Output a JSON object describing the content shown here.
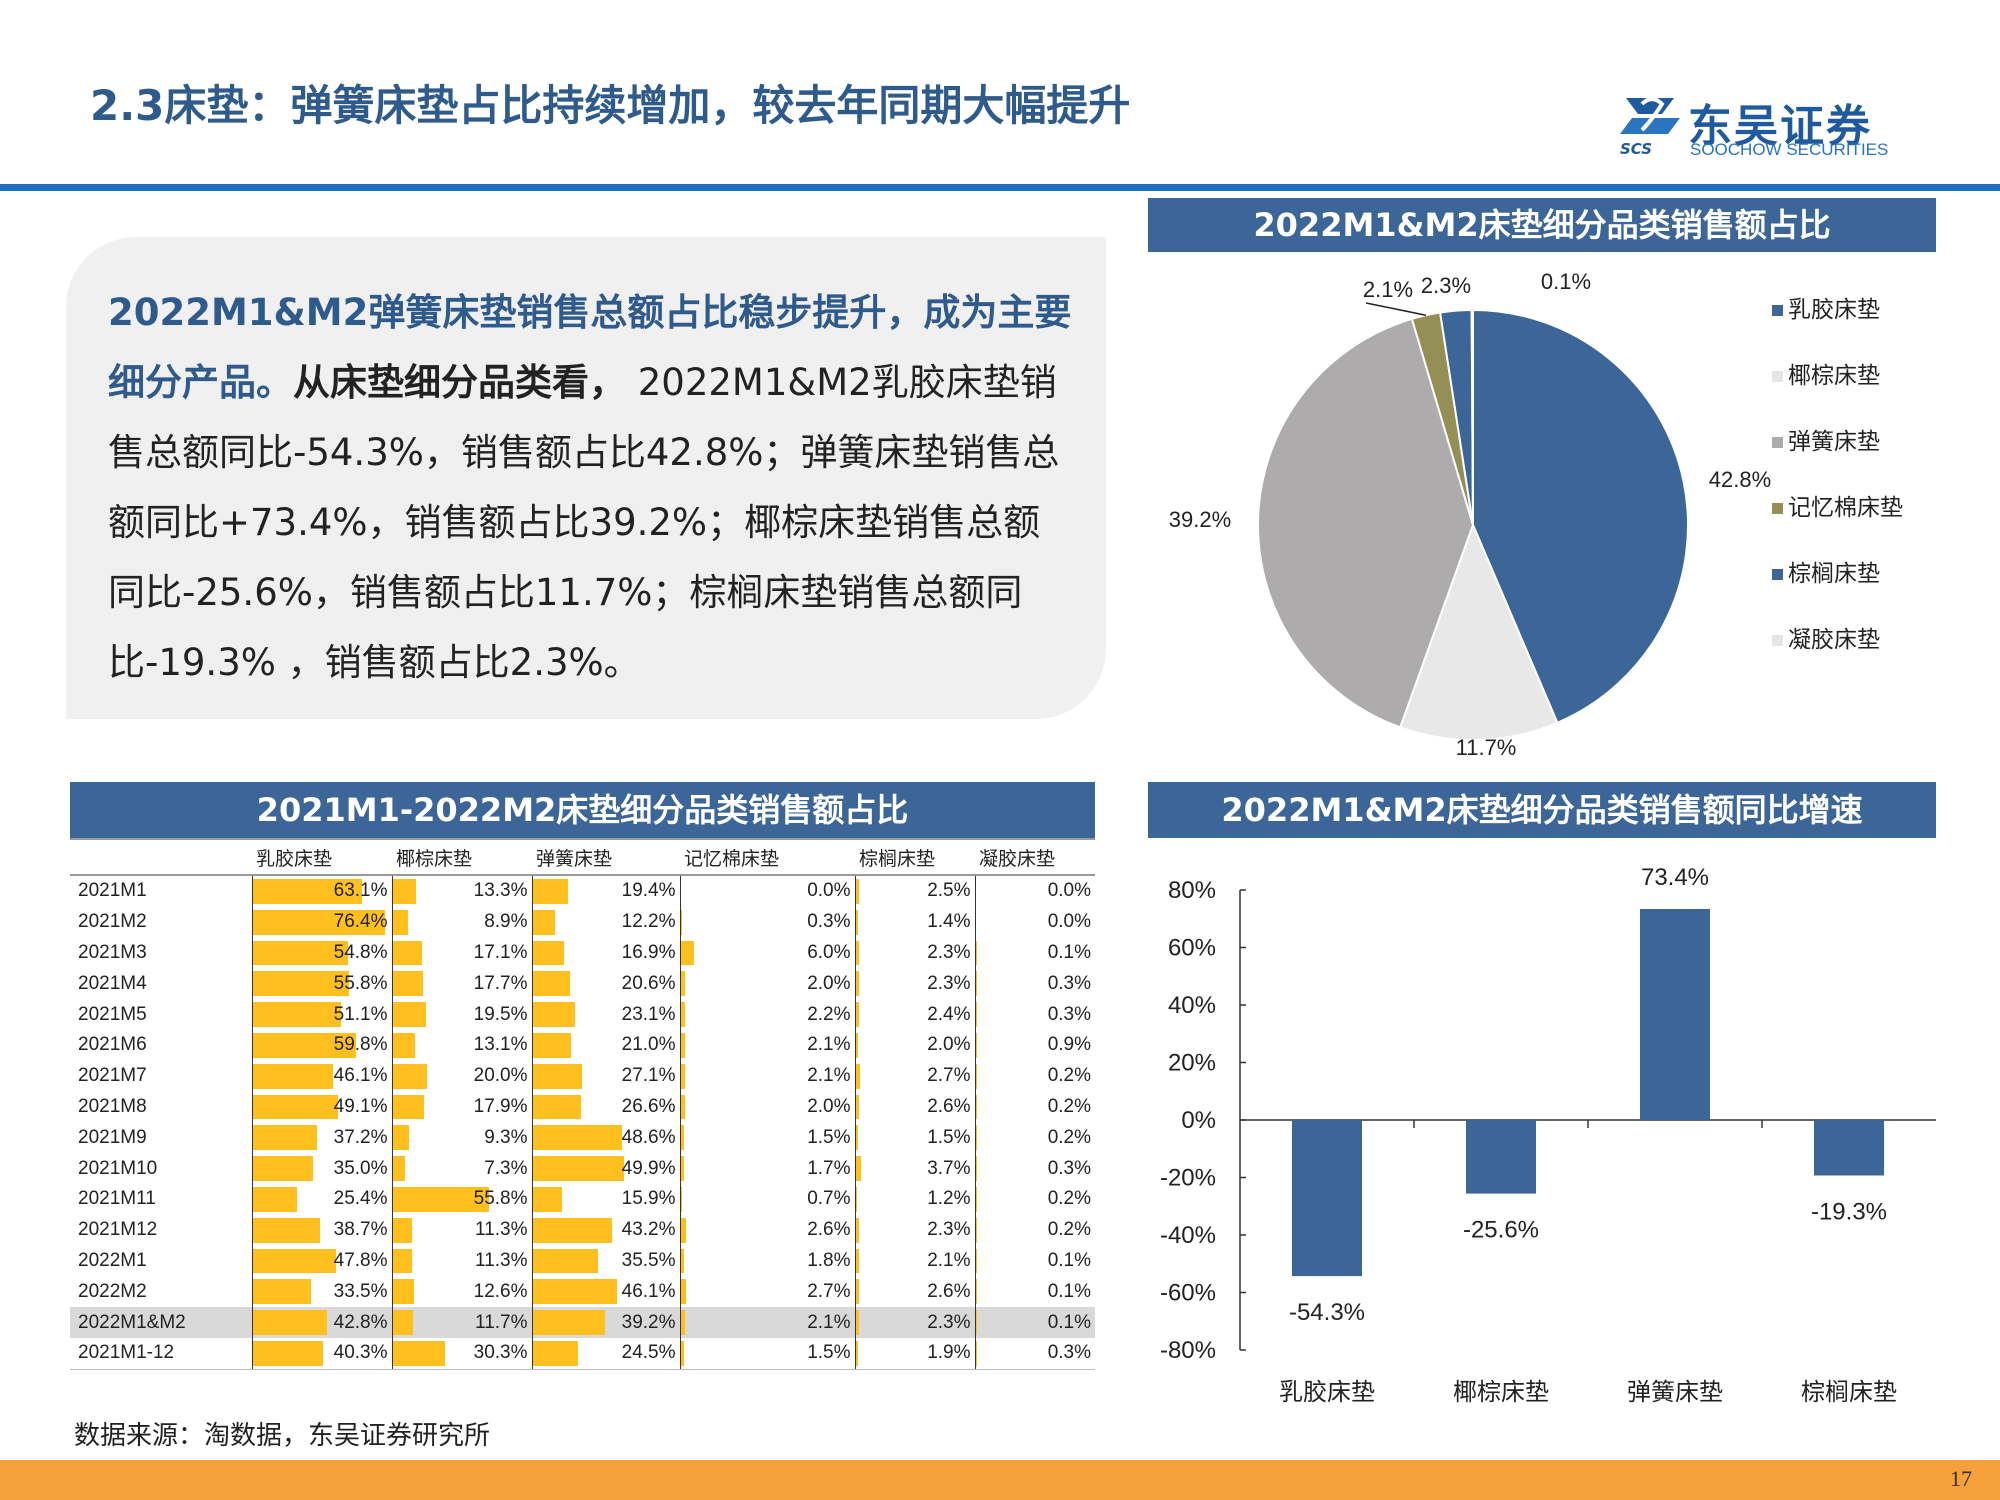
{
  "page": {
    "title": "2.3床垫：弹簧床垫占比持续增加，较去年同期大幅提升",
    "logo_cn": "东吴证券",
    "logo_en": "SOOCHOW SECURITIES",
    "logo_abbr": "SCS",
    "source": "数据来源：淘数据，东吴证券研究所",
    "page_number": "17",
    "colors": {
      "title": "#2f5a8c",
      "header_band": "#3c6697",
      "rule": "#1f6fc0",
      "footer": "#f5a03a",
      "data_bar": "#ffbf1f"
    }
  },
  "summary": {
    "highlight": "2022M1&M2弹簧床垫销售总额占比稳步提升，成为主要细分产品。",
    "bold": "从床垫细分品类看，",
    "body": " 2022M1&M2乳胶床垫销售总额同比-54.3%，销售额占比42.8%；弹簧床垫销售总额同比+73.4%，销售额占比39.2%；椰棕床垫销售总额同比-25.6%，销售额占比11.7%；棕榈床垫销售总额同比-19.3% ，销售额占比2.3%。"
  },
  "pie_chart": {
    "header": "2022M1&M2床垫细分品类销售额占比"
  },
  "table": {
    "header": "2021M1-2022M2床垫细分品类销售额占比",
    "columns": [
      "",
      "乳胶床垫",
      "椰棕床垫",
      "弹簧床垫",
      "记忆棉床垫",
      "棕榈床垫",
      "凝胶床垫"
    ],
    "rows": [
      {
        "label": "2021M1",
        "values": [
          "63.1%",
          "13.3%",
          "19.4%",
          "0.0%",
          "2.5%",
          "0.0%"
        ]
      },
      {
        "label": "2021M2",
        "values": [
          "76.4%",
          "8.9%",
          "12.2%",
          "0.3%",
          "1.4%",
          "0.0%"
        ]
      },
      {
        "label": "2021M3",
        "values": [
          "54.8%",
          "17.1%",
          "16.9%",
          "6.0%",
          "2.3%",
          "0.1%"
        ]
      },
      {
        "label": "2021M4",
        "values": [
          "55.8%",
          "17.7%",
          "20.6%",
          "2.0%",
          "2.3%",
          "0.3%"
        ]
      },
      {
        "label": "2021M5",
        "values": [
          "51.1%",
          "19.5%",
          "23.1%",
          "2.2%",
          "2.4%",
          "0.3%"
        ]
      },
      {
        "label": "2021M6",
        "values": [
          "59.8%",
          "13.1%",
          "21.0%",
          "2.1%",
          "2.0%",
          "0.9%"
        ]
      },
      {
        "label": "2021M7",
        "values": [
          "46.1%",
          "20.0%",
          "27.1%",
          "2.1%",
          "2.7%",
          "0.2%"
        ]
      },
      {
        "label": "2021M8",
        "values": [
          "49.1%",
          "17.9%",
          "26.6%",
          "2.0%",
          "2.6%",
          "0.2%"
        ]
      },
      {
        "label": "2021M9",
        "values": [
          "37.2%",
          "9.3%",
          "48.6%",
          "1.5%",
          "1.5%",
          "0.2%"
        ]
      },
      {
        "label": "2021M10",
        "values": [
          "35.0%",
          "7.3%",
          "49.9%",
          "1.7%",
          "3.7%",
          "0.3%"
        ]
      },
      {
        "label": "2021M11",
        "values": [
          "25.4%",
          "55.8%",
          "15.9%",
          "0.7%",
          "1.2%",
          "0.2%"
        ]
      },
      {
        "label": "2021M12",
        "values": [
          "38.7%",
          "11.3%",
          "43.2%",
          "2.6%",
          "2.3%",
          "0.2%"
        ]
      },
      {
        "label": "2022M1",
        "values": [
          "47.8%",
          "11.3%",
          "35.5%",
          "1.8%",
          "2.1%",
          "0.1%"
        ]
      },
      {
        "label": "2022M2",
        "values": [
          "33.5%",
          "12.6%",
          "46.1%",
          "2.7%",
          "2.6%",
          "0.1%"
        ]
      },
      {
        "label": "2022M1&M2",
        "values": [
          "42.8%",
          "11.7%",
          "39.2%",
          "2.1%",
          "2.3%",
          "0.1%"
        ]
      },
      {
        "label": "2021M1-12",
        "values": [
          "40.3%",
          "30.3%",
          "24.5%",
          "1.5%",
          "1.9%",
          "0.3%"
        ]
      }
    ],
    "shaded_row": "2022M1&M2"
  },
  "bar_chart": {
    "header": "2022M1&M2床垫细分品类销售额同比增速"
  },
  "chart_data": [
    {
      "type": "pie",
      "title": "2022M1&M2床垫细分品类销售额占比",
      "series": [
        {
          "name": "乳胶床垫",
          "value": 42.8,
          "label": "42.8%",
          "color": "#3c6697"
        },
        {
          "name": "椰棕床垫",
          "value": 11.7,
          "label": "11.7%",
          "color": "#e8e8e8"
        },
        {
          "name": "弹簧床垫",
          "value": 39.2,
          "label": "39.2%",
          "color": "#adabab"
        },
        {
          "name": "记忆棉床垫",
          "value": 2.1,
          "label": "2.1%",
          "color": "#948f55"
        },
        {
          "name": "棕榈床垫",
          "value": 2.3,
          "label": "2.3%",
          "color": "#3c6697"
        },
        {
          "name": "凝胶床垫",
          "value": 0.1,
          "label": "0.1%",
          "color": "#e8e8e8"
        }
      ],
      "legend_position": "right"
    },
    {
      "type": "bar",
      "title": "2022M1&M2床垫细分品类销售额同比增速",
      "categories": [
        "乳胶床垫",
        "椰棕床垫",
        "弹簧床垫",
        "棕榈床垫"
      ],
      "values": [
        -54.3,
        -25.6,
        73.4,
        -19.3
      ],
      "value_labels": [
        "-54.3%",
        "-25.6%",
        "73.4%",
        "-19.3%"
      ],
      "ylim": [
        -80,
        80
      ],
      "yticks": [
        -80,
        -60,
        -40,
        -20,
        0,
        20,
        40,
        60,
        80
      ],
      "ytick_labels": [
        "-80%",
        "-60%",
        "-40%",
        "-20%",
        "0%",
        "20%",
        "40%",
        "60%",
        "80%"
      ],
      "color": "#3c6697",
      "grid": false
    }
  ]
}
